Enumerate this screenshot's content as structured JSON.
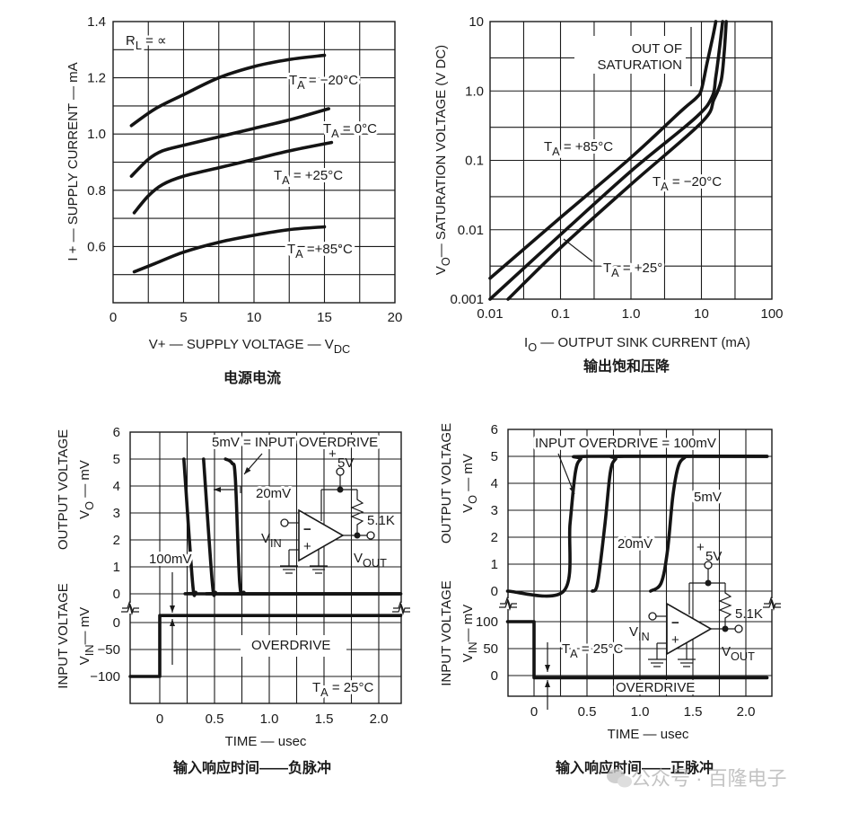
{
  "watermark": "公众号 · 百隆电子",
  "circuit": {
    "supply_plus": "+",
    "supply": "5V",
    "resistor": "5.1K",
    "vin": [
      {
        "t": "V"
      },
      {
        "t": "IN",
        "sub": true
      }
    ],
    "vout": [
      {
        "t": "V"
      },
      {
        "t": "OUT",
        "sub": true
      }
    ],
    "inv": "−",
    "noninv": "+"
  },
  "chart_data": [
    {
      "type": "line",
      "title": "电源电流",
      "xlabel": [
        {
          "t": "V+ — SUPPLY VOLTAGE — V"
        },
        {
          "t": "DC",
          "sub": true
        }
      ],
      "ylabel": [
        {
          "t": "I + — SUPPLY CURRENT — mA"
        }
      ],
      "xlim": [
        0,
        20
      ],
      "ylim": [
        0.4,
        1.4
      ],
      "grid": true,
      "xticks": [
        {
          "v": 0,
          "label": "0"
        },
        {
          "v": 5,
          "label": "5"
        },
        {
          "v": 10,
          "label": "10"
        },
        {
          "v": 15,
          "label": "15"
        },
        {
          "v": 20,
          "label": "20"
        }
      ],
      "yticks": [
        {
          "v": 0.6,
          "label": "0.6"
        },
        {
          "v": 0.8,
          "label": "0.8"
        },
        {
          "v": 1.0,
          "label": "1.0"
        },
        {
          "v": 1.2,
          "label": "1.2"
        },
        {
          "v": 1.4,
          "label": "1.4"
        }
      ],
      "annotations": [
        {
          "text": [
            {
              "t": "R"
            },
            {
              "t": "L",
              "sub": true
            },
            {
              "t": " = ∝"
            }
          ]
        }
      ],
      "series": [
        {
          "name": "TA = −20°C",
          "label": [
            {
              "t": "T"
            },
            {
              "t": "A",
              "sub": true
            },
            {
              "t": " = −20°C"
            }
          ],
          "points": [
            [
              1.3,
              1.03
            ],
            [
              3,
              1.09
            ],
            [
              5,
              1.14
            ],
            [
              7.5,
              1.2
            ],
            [
              10,
              1.24
            ],
            [
              12.5,
              1.265
            ],
            [
              15,
              1.28
            ]
          ]
        },
        {
          "name": "TA = 0°C",
          "label": [
            {
              "t": "T"
            },
            {
              "t": "A",
              "sub": true
            },
            {
              "t": " = 0°C"
            }
          ],
          "points": [
            [
              1.3,
              0.85
            ],
            [
              2.5,
              0.91
            ],
            [
              3.5,
              0.94
            ],
            [
              5,
              0.96
            ],
            [
              7.5,
              0.99
            ],
            [
              10,
              1.02
            ],
            [
              12.5,
              1.05
            ],
            [
              15.3,
              1.09
            ]
          ]
        },
        {
          "name": "TA = +25°C",
          "label": [
            {
              "t": "T"
            },
            {
              "t": "A",
              "sub": true
            },
            {
              "t": " = +25°C"
            }
          ],
          "points": [
            [
              1.5,
              0.72
            ],
            [
              2.5,
              0.78
            ],
            [
              3.5,
              0.82
            ],
            [
              5,
              0.85
            ],
            [
              7.5,
              0.88
            ],
            [
              10,
              0.91
            ],
            [
              12.5,
              0.94
            ],
            [
              15.5,
              0.97
            ]
          ]
        },
        {
          "name": "TA = +85°C",
          "label": [
            {
              "t": "T"
            },
            {
              "t": "A",
              "sub": true
            },
            {
              "t": " =+85°C"
            }
          ],
          "points": [
            [
              1.5,
              0.51
            ],
            [
              3,
              0.54
            ],
            [
              5,
              0.58
            ],
            [
              7.5,
              0.615
            ],
            [
              10,
              0.64
            ],
            [
              12.5,
              0.66
            ],
            [
              15,
              0.67
            ]
          ]
        }
      ]
    },
    {
      "type": "line",
      "title": "输出饱和压降",
      "xlabel": [
        {
          "t": "I"
        },
        {
          "t": "O",
          "sub": true
        },
        {
          "t": " — OUTPUT SINK CURRENT (mA)"
        }
      ],
      "ylabel": [
        {
          "t": "V"
        },
        {
          "t": "O",
          "sub": true
        },
        {
          "t": "— SATURATION VOLTAGE (V DC)"
        }
      ],
      "xscale": "log",
      "yscale": "log",
      "xlim": [
        0.01,
        100
      ],
      "ylim": [
        0.001,
        10
      ],
      "grid": true,
      "xticks": [
        {
          "v": 0.01,
          "label": "0.01"
        },
        {
          "v": 0.1,
          "label": "0.1"
        },
        {
          "v": 1,
          "label": "1.0"
        },
        {
          "v": 10,
          "label": "10"
        },
        {
          "v": 100,
          "label": "100"
        }
      ],
      "yticks": [
        {
          "v": 0.001,
          "label": "0.001"
        },
        {
          "v": 0.01,
          "label": "0.01"
        },
        {
          "v": 0.1,
          "label": "0.1"
        },
        {
          "v": 1,
          "label": "1.0"
        },
        {
          "v": 10,
          "label": "10"
        }
      ],
      "annotations": [
        {
          "text": [
            {
              "t": "OUT OF"
            }
          ]
        },
        {
          "text": [
            {
              "t": "SATURATION"
            }
          ]
        }
      ],
      "series": [
        {
          "name": "TA = +85°C",
          "label": [
            {
              "t": "T"
            },
            {
              "t": "A",
              "sub": true
            },
            {
              "t": " = +85°C"
            }
          ],
          "points": [
            [
              0.01,
              0.002
            ],
            [
              0.1,
              0.015
            ],
            [
              1,
              0.11
            ],
            [
              5,
              0.5
            ],
            [
              8.5,
              0.8
            ],
            [
              10,
              1.05
            ],
            [
              12,
              2.5
            ],
            [
              14.5,
              6
            ],
            [
              16,
              10
            ]
          ]
        },
        {
          "name": "TA = −20°C",
          "label": [
            {
              "t": "T"
            },
            {
              "t": "A",
              "sub": true
            },
            {
              "t": " = −20°C"
            }
          ],
          "points": [
            [
              0.01,
              0.001
            ],
            [
              0.1,
              0.0085
            ],
            [
              1,
              0.07
            ],
            [
              8,
              0.4
            ],
            [
              14,
              0.8
            ],
            [
              16,
              1.6
            ],
            [
              18,
              4
            ],
            [
              20,
              10
            ]
          ]
        },
        {
          "name": "TA = +25°",
          "label": [
            {
              "t": "T"
            },
            {
              "t": "A",
              "sub": true
            },
            {
              "t": " = +25°"
            }
          ],
          "points": [
            [
              0.018,
              0.001
            ],
            [
              0.1,
              0.0055
            ],
            [
              1,
              0.045
            ],
            [
              10,
              0.35
            ],
            [
              15,
              0.75
            ],
            [
              19,
              1.4
            ],
            [
              21,
              3.5
            ],
            [
              22.5,
              10
            ]
          ]
        }
      ]
    },
    {
      "type": "line",
      "title": "输入响应时间——负脉冲",
      "xlabel": [
        {
          "t": "TIME —  usec"
        }
      ],
      "ylabel_output": [
        {
          "t": "OUTPUT VOLTAGE"
        }
      ],
      "ylabel_output2": [
        {
          "t": "V"
        },
        {
          "t": "O",
          "sub": true
        },
        {
          "t": " — mV"
        }
      ],
      "ylabel_input": [
        {
          "t": "INPUT VOLTAGE"
        }
      ],
      "ylabel_input2": [
        {
          "t": "V"
        },
        {
          "t": "IN",
          "sub": true
        },
        {
          "t": "— mV"
        }
      ],
      "xlim": [
        -0.27,
        2.2
      ],
      "ylim_output": [
        0,
        6
      ],
      "ylim_input": [
        -150,
        20
      ],
      "grid": true,
      "xticks": [
        {
          "v": 0,
          "label": "0"
        },
        {
          "v": 0.5,
          "label": "0.5"
        },
        {
          "v": 1,
          "label": "1.0"
        },
        {
          "v": 1.5,
          "label": "1.5"
        },
        {
          "v": 2,
          "label": "2.0"
        }
      ],
      "yticks_output": [
        {
          "v": 0,
          "label": "0"
        },
        {
          "v": 1,
          "label": "1"
        },
        {
          "v": 2,
          "label": "2"
        },
        {
          "v": 3,
          "label": "3"
        },
        {
          "v": 4,
          "label": "4"
        },
        {
          "v": 5,
          "label": "5"
        },
        {
          "v": 6,
          "label": "6"
        }
      ],
      "yticks_input": [
        {
          "v": 0,
          "label": "0"
        },
        {
          "v": -50,
          "label": "−50"
        },
        {
          "v": -100,
          "label": "−100"
        }
      ],
      "annotations": [
        {
          "text": [
            {
              "t": "5mV = INPUT OVERDRIVE"
            }
          ]
        },
        {
          "text": [
            {
              "t": "20mV"
            }
          ]
        },
        {
          "text": [
            {
              "t": "100mV"
            }
          ]
        },
        {
          "text": [
            {
              "t": "OVERDRIVE"
            }
          ]
        },
        {
          "text": [
            {
              "t": "T"
            },
            {
              "t": "A",
              "sub": true
            },
            {
              "t": " = 25°C"
            }
          ]
        }
      ],
      "series": [
        {
          "name": "100mV",
          "axis": "output",
          "points": [
            [
              0.22,
              5
            ],
            [
              0.3,
              0.4
            ],
            [
              0.33,
              0.05
            ],
            [
              0.38,
              0
            ],
            [
              2.2,
              0
            ]
          ]
        },
        {
          "name": "20mV",
          "axis": "output",
          "points": [
            [
              0.4,
              5
            ],
            [
              0.48,
              0.4
            ],
            [
              0.51,
              0.05
            ],
            [
              0.56,
              0
            ],
            [
              2.2,
              0
            ]
          ]
        },
        {
          "name": "5mV",
          "axis": "output",
          "points": [
            [
              0.6,
              5
            ],
            [
              0.66,
              4.85
            ],
            [
              0.69,
              4.3
            ],
            [
              0.73,
              0.4
            ],
            [
              0.77,
              0.05
            ],
            [
              0.83,
              0
            ],
            [
              2.2,
              0
            ]
          ]
        },
        {
          "name": "input",
          "axis": "input",
          "step": true,
          "points": [
            [
              -0.27,
              -100
            ],
            [
              0,
              -100
            ],
            [
              0,
              13
            ],
            [
              2.2,
              13
            ]
          ]
        }
      ]
    },
    {
      "type": "line",
      "title": "输入响应时间——正脉冲",
      "xlabel": [
        {
          "t": "TIME —  usec"
        }
      ],
      "ylabel_output": [
        {
          "t": "OUTPUT VOLTAGE"
        }
      ],
      "ylabel_output2": [
        {
          "t": "V"
        },
        {
          "t": "O",
          "sub": true
        },
        {
          "t": " — mV"
        }
      ],
      "ylabel_input": [
        {
          "t": "INPUT VOLTAGE"
        }
      ],
      "ylabel_input2": [
        {
          "t": "V"
        },
        {
          "t": "IN",
          "sub": true
        },
        {
          "t": "— mV"
        }
      ],
      "xlim": [
        -0.25,
        2.2
      ],
      "ylim_output": [
        0,
        6
      ],
      "ylim_input": [
        -40,
        130
      ],
      "grid": true,
      "xticks": [
        {
          "v": 0,
          "label": "0"
        },
        {
          "v": 0.5,
          "label": "0.5"
        },
        {
          "v": 1,
          "label": "1.0"
        },
        {
          "v": 1.5,
          "label": "1.5"
        },
        {
          "v": 2,
          "label": "2.0"
        }
      ],
      "yticks_output": [
        {
          "v": 0,
          "label": "0"
        },
        {
          "v": 1,
          "label": "1"
        },
        {
          "v": 2,
          "label": "2"
        },
        {
          "v": 3,
          "label": "3"
        },
        {
          "v": 4,
          "label": "4"
        },
        {
          "v": 5,
          "label": "5"
        },
        {
          "v": 6,
          "label": "6"
        }
      ],
      "yticks_input": [
        {
          "v": 0,
          "label": "0"
        },
        {
          "v": 50,
          "label": "50"
        },
        {
          "v": 100,
          "label": "100"
        }
      ],
      "annotations": [
        {
          "text": [
            {
              "t": "INPUT OVERDRIVE = 100mV"
            }
          ]
        },
        {
          "text": [
            {
              "t": "5mV"
            }
          ]
        },
        {
          "text": [
            {
              "t": "20mV"
            }
          ]
        },
        {
          "text": [
            {
              "t": "T"
            },
            {
              "t": "A",
              "sub": true
            },
            {
              "t": " = 25°C"
            }
          ]
        },
        {
          "text": [
            {
              "t": "OVERDRIVE"
            }
          ]
        }
      ],
      "series": [
        {
          "name": "100mV",
          "axis": "output",
          "points": [
            [
              -0.25,
              0
            ],
            [
              0.28,
              0
            ],
            [
              0.34,
              2.5
            ],
            [
              0.39,
              4.4
            ],
            [
              0.44,
              4.9
            ],
            [
              0.52,
              5
            ],
            [
              2.2,
              5
            ]
          ]
        },
        {
          "name": "20mV",
          "axis": "output",
          "points": [
            [
              0.55,
              0
            ],
            [
              0.6,
              0.3
            ],
            [
              0.67,
              2.5
            ],
            [
              0.72,
              4.4
            ],
            [
              0.77,
              4.9
            ],
            [
              0.85,
              5
            ],
            [
              2.2,
              5
            ]
          ]
        },
        {
          "name": "5mV",
          "axis": "output",
          "points": [
            [
              1.1,
              0
            ],
            [
              1.2,
              0.3
            ],
            [
              1.26,
              1.5
            ],
            [
              1.31,
              3.5
            ],
            [
              1.36,
              4.6
            ],
            [
              1.42,
              4.95
            ],
            [
              1.5,
              5
            ],
            [
              2.2,
              5
            ]
          ]
        },
        {
          "name": "input",
          "axis": "input",
          "step": true,
          "points": [
            [
              -0.25,
              100
            ],
            [
              0,
              100
            ],
            [
              0,
              -4
            ],
            [
              2.2,
              -4
            ]
          ]
        }
      ]
    }
  ]
}
